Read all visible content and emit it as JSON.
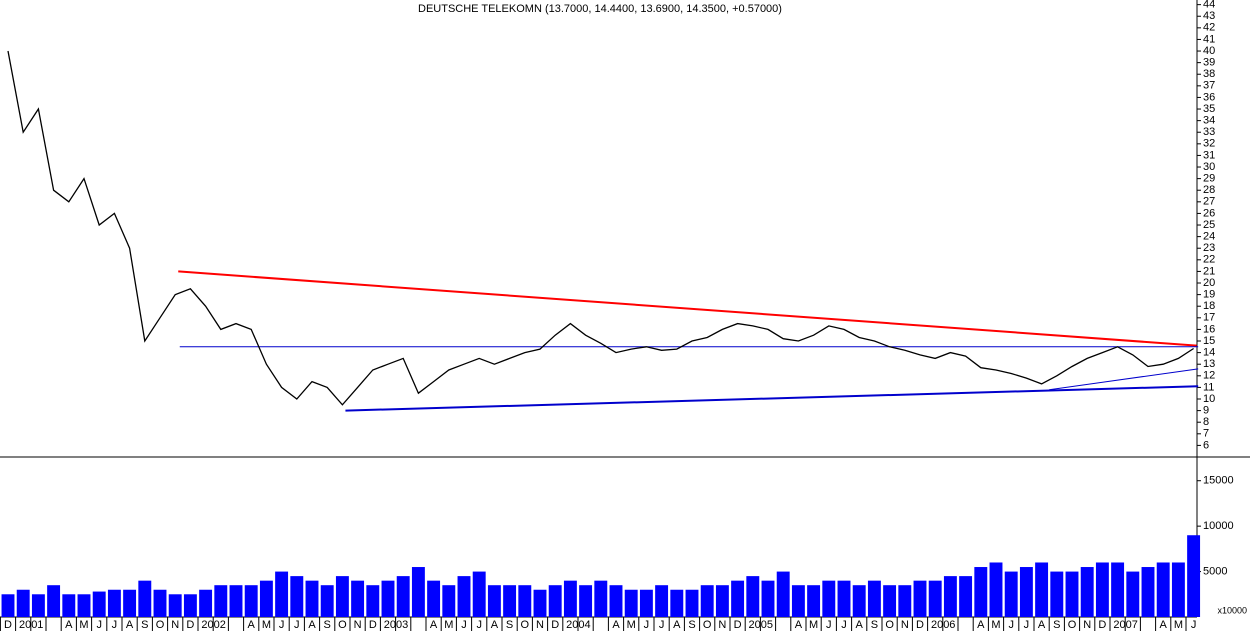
{
  "chart_data": [
    {
      "type": "line",
      "title": "DEUTSCHE TELEKOMN (13.7000, 14.4400, 13.6900, 14.3500, +0.57000)",
      "categories": [
        "D",
        "2001",
        null,
        null,
        "A",
        "M",
        "J",
        "J",
        "A",
        "S",
        "O",
        "N",
        "D",
        "2002",
        null,
        null,
        "A",
        "M",
        "J",
        "J",
        "A",
        "S",
        "O",
        "N",
        "D",
        "2003",
        null,
        null,
        "A",
        "M",
        "J",
        "J",
        "A",
        "S",
        "O",
        "N",
        "D",
        "2004",
        null,
        null,
        "A",
        "M",
        "J",
        "J",
        "A",
        "S",
        "O",
        "N",
        "D",
        "2005",
        null,
        null,
        "A",
        "M",
        "J",
        "J",
        "A",
        "S",
        "O",
        "N",
        "D",
        "2006",
        null,
        null,
        "A",
        "M",
        "J",
        "J",
        "A",
        "S",
        "O",
        "N",
        "D",
        "2007",
        null,
        null,
        "A",
        "M",
        "J"
      ],
      "values": [
        40,
        33,
        35,
        28,
        27,
        29,
        25,
        26,
        23,
        15,
        17,
        19,
        19.5,
        18,
        16,
        16.5,
        16,
        13,
        11,
        10,
        11.5,
        11,
        9.5,
        11,
        12.5,
        13,
        13.5,
        10.5,
        11.5,
        12.5,
        13,
        13.5,
        13,
        13.5,
        14,
        14.3,
        15.5,
        16.5,
        15.5,
        14.8,
        14,
        14.3,
        14.5,
        14.2,
        14.3,
        15,
        15.3,
        16,
        16.5,
        16.3,
        16,
        15.2,
        15,
        15.5,
        16.3,
        16,
        15.3,
        15,
        14.5,
        14.2,
        13.8,
        13.5,
        14,
        13.7,
        12.7,
        12.5,
        12.2,
        11.8,
        11.3,
        12,
        12.8,
        13.5,
        14,
        14.5,
        13.8,
        12.8,
        13,
        13.5,
        14.35
      ],
      "color": "#000000",
      "ylim": [
        5,
        44.4
      ],
      "yticks": [
        6,
        7,
        8,
        9,
        10,
        11,
        12,
        13,
        14,
        15,
        16,
        17,
        18,
        19,
        20,
        21,
        22,
        23,
        24,
        25,
        26,
        27,
        28,
        29,
        30,
        31,
        32,
        33,
        34,
        35,
        36,
        37,
        38,
        39,
        40,
        41,
        42,
        43,
        44
      ],
      "trendlines": [
        {
          "color": "#ff0000",
          "width": 2,
          "x": [
            11.2,
            78.2
          ],
          "y": [
            21,
            14.6
          ]
        },
        {
          "color": "#0000cc",
          "width": 2,
          "x": [
            22.2,
            78.3
          ],
          "y": [
            9,
            11.1
          ]
        },
        {
          "color": "#0000cc",
          "width": 1,
          "x": [
            11.3,
            78.3
          ],
          "y": [
            14.5,
            14.5
          ]
        },
        {
          "color": "#0000cc",
          "width": 1,
          "x": [
            68.5,
            78.3
          ],
          "y": [
            10.8,
            12.6
          ]
        }
      ]
    },
    {
      "type": "bar",
      "values": [
        2500,
        3000,
        2500,
        3500,
        2500,
        2500,
        2800,
        3000,
        3000,
        4000,
        3000,
        2500,
        2500,
        3000,
        3500,
        3500,
        3500,
        4000,
        5000,
        4500,
        4000,
        3500,
        4500,
        4000,
        3500,
        4000,
        4500,
        5500,
        4000,
        3500,
        4500,
        5000,
        3500,
        3500,
        3500,
        3000,
        3500,
        4000,
        3500,
        4000,
        3500,
        3000,
        3000,
        3500,
        3000,
        3000,
        3500,
        3500,
        4000,
        4500,
        4000,
        5000,
        3500,
        3500,
        4000,
        4000,
        3500,
        4000,
        3500,
        3500,
        4000,
        4000,
        4500,
        4500,
        5500,
        6000,
        5000,
        5500,
        6000,
        5000,
        5000,
        5500,
        6000,
        6000,
        5000,
        5500,
        6000,
        6000,
        9000
      ],
      "color": "#0000ff",
      "ylim": [
        0,
        17500
      ],
      "yticks": [
        5000,
        10000,
        15000
      ],
      "unit_label": "x10000"
    }
  ]
}
